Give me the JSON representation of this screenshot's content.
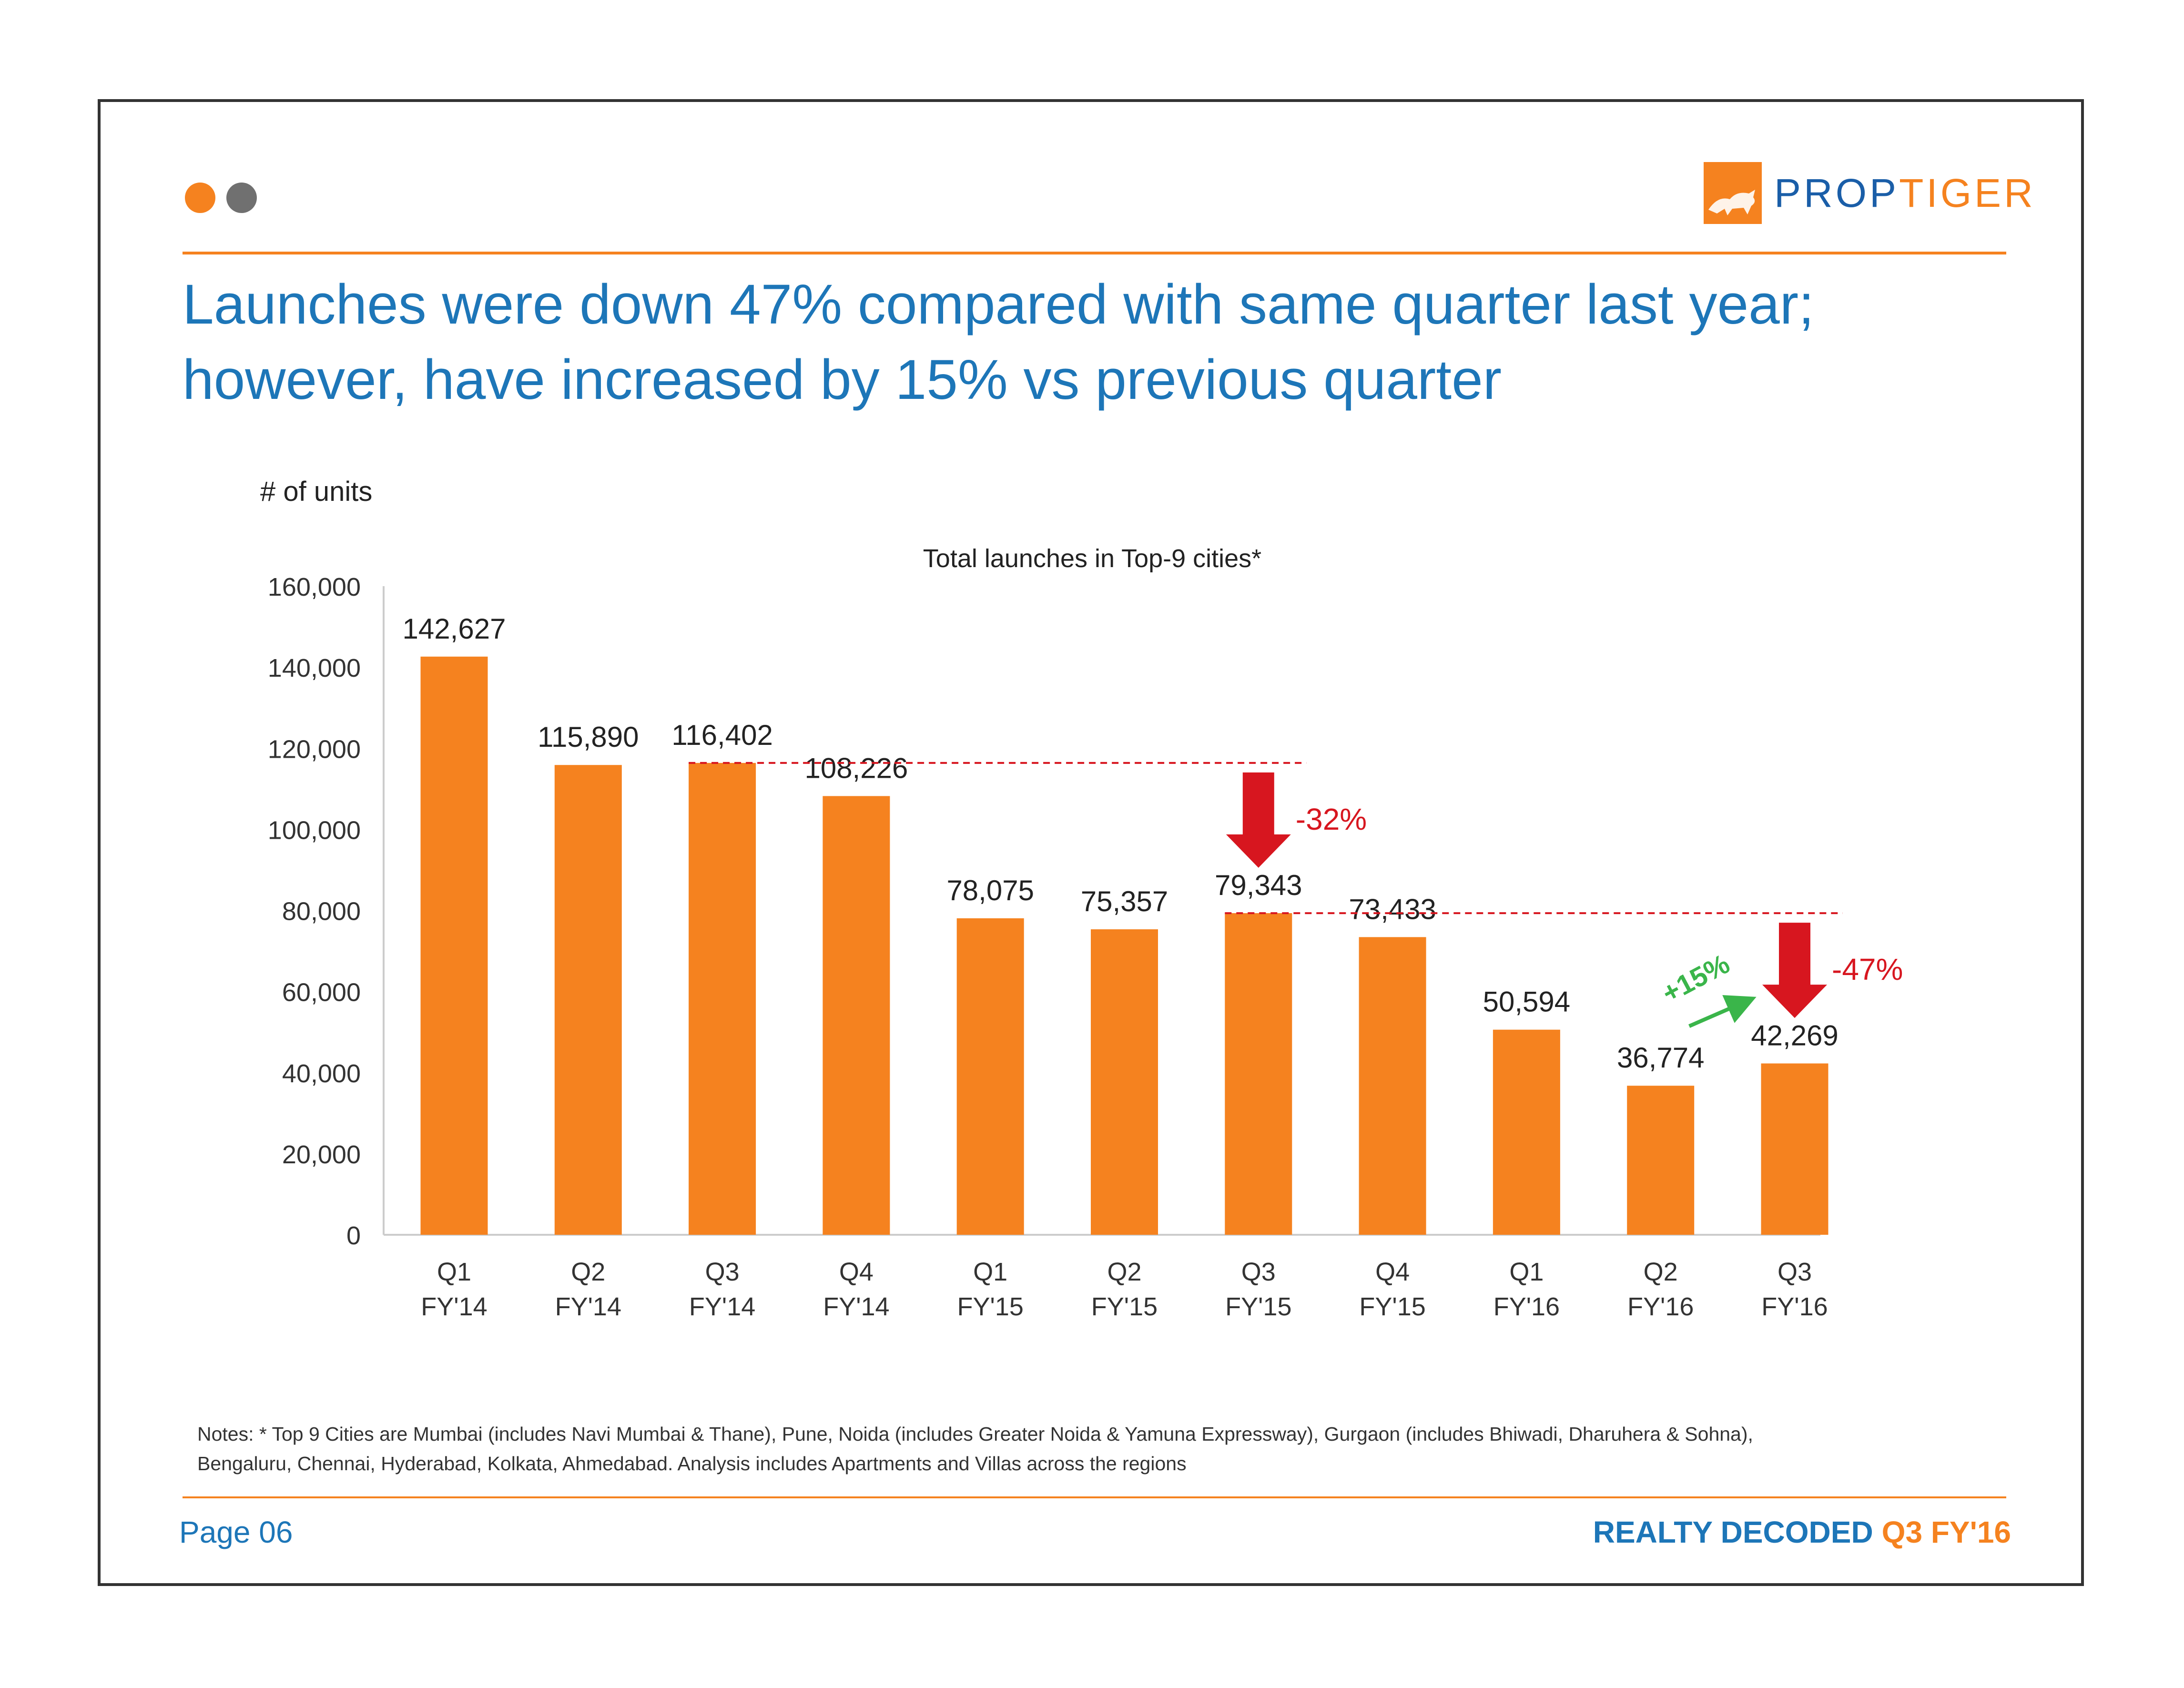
{
  "brand": {
    "logo_text_1": "PROP",
    "logo_text_2": "TIGER",
    "colors": {
      "orange": "#f5821f",
      "blue": "#1d76b8",
      "red": "#d7161f",
      "green": "#3ab54a"
    }
  },
  "title": {
    "line1": "Launches were down 47% compared with same quarter last year;",
    "line2": "however, have increased by 15% vs previous quarter"
  },
  "units_label": "# of units",
  "chart_data": {
    "type": "bar",
    "title": "Total launches in Top-9 cities*",
    "ylabel": "# of units",
    "xlabel": "",
    "ylim": [
      0,
      160000
    ],
    "yticks": [
      0,
      20000,
      40000,
      60000,
      80000,
      100000,
      120000,
      140000,
      160000
    ],
    "ytick_labels": [
      "0",
      "20,000",
      "40,000",
      "60,000",
      "80,000",
      "100,000",
      "120,000",
      "140,000",
      "160,000"
    ],
    "categories": [
      [
        "Q1",
        "FY'14"
      ],
      [
        "Q2",
        "FY'14"
      ],
      [
        "Q3",
        "FY'14"
      ],
      [
        "Q4",
        "FY'14"
      ],
      [
        "Q1",
        "FY'15"
      ],
      [
        "Q2",
        "FY'15"
      ],
      [
        "Q3",
        "FY'15"
      ],
      [
        "Q4",
        "FY'15"
      ],
      [
        "Q1",
        "FY'16"
      ],
      [
        "Q2",
        "FY'16"
      ],
      [
        "Q3",
        "FY'16"
      ]
    ],
    "values": [
      142627,
      115890,
      116402,
      108226,
      78075,
      75357,
      79343,
      73433,
      50594,
      36774,
      42269
    ],
    "value_labels": [
      "142,627",
      "115,890",
      "116,402",
      "108,226",
      "78,075",
      "75,357",
      "79,343",
      "73,433",
      "50,594",
      "36,774",
      "42,269"
    ],
    "bar_color": "#f5821f",
    "annotations": [
      {
        "type": "ref-line-drop",
        "from_index": 2,
        "to_index": 6,
        "label": "-32%",
        "color": "#d7161f"
      },
      {
        "type": "ref-line-drop",
        "from_index": 6,
        "to_index": 10,
        "label": "-47%",
        "color": "#d7161f"
      },
      {
        "type": "rise-arrow",
        "from_index": 9,
        "to_index": 10,
        "label": "+15%",
        "color": "#3ab54a"
      }
    ]
  },
  "notes": {
    "line1": "Notes: * Top 9 Cities are Mumbai (includes Navi Mumbai & Thane), Pune, Noida (includes Greater Noida & Yamuna Expressway), Gurgaon (includes Bhiwadi, Dharuhera & Sohna),",
    "line2": "Bengaluru, Chennai, Hyderabad, Kolkata, Ahmedabad. Analysis includes Apartments and Villas across the regions"
  },
  "footer": {
    "page": "Page 06",
    "brand": "REALTY DECODED",
    "edition": "Q3 FY'16"
  }
}
